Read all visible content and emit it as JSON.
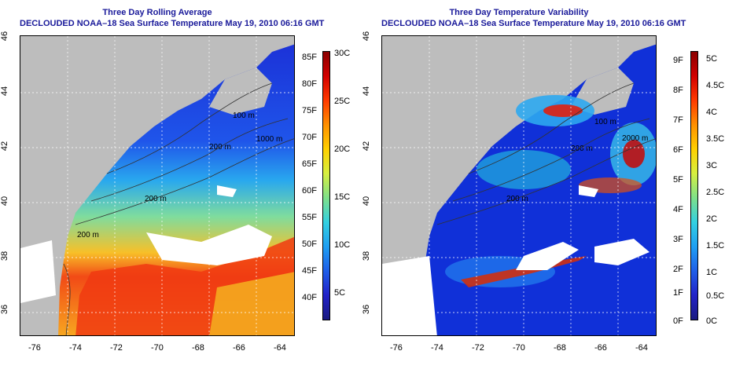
{
  "left_panel": {
    "title": "Three Day Rolling Average",
    "subtitle": "DECLOUDED NOAA–18 Sea Surface Temperature May 19, 2010 06:16 GMT",
    "colorbar_f": [
      "85F",
      "80F",
      "75F",
      "70F",
      "65F",
      "60F",
      "55F",
      "50F",
      "45F",
      "40F"
    ],
    "colorbar_c": [
      "30C",
      "25C",
      "20C",
      "15C",
      "10C",
      "5C"
    ],
    "contour_labels": [
      "100 m",
      "200 m",
      "1000 m",
      "200 m",
      "200 m"
    ]
  },
  "right_panel": {
    "title": "Three Day Temperature Variability",
    "subtitle": "DECLOUDED NOAA–18 Sea Surface Temperature May 19, 2010 06:16 GMT",
    "colorbar_f": [
      "9F",
      "8F",
      "7F",
      "6F",
      "5F",
      "4F",
      "3F",
      "2F",
      "1F",
      "0F"
    ],
    "colorbar_c": [
      "5C",
      "4.5C",
      "4C",
      "3.5C",
      "3C",
      "2.5C",
      "2C",
      "1.5C",
      "1C",
      "0.5C",
      "0C"
    ],
    "contour_labels": [
      "100 m",
      "200 m",
      "2000 m",
      "200 m"
    ]
  },
  "axes": {
    "x_ticks": [
      "-76",
      "-74",
      "-72",
      "-70",
      "-68",
      "-66",
      "-64"
    ],
    "y_ticks": [
      "46",
      "44",
      "42",
      "40",
      "38",
      "36"
    ]
  },
  "colors": {
    "title": "#1a1a9a",
    "land": "#bdbdbd",
    "cloud": "#ffffff"
  }
}
